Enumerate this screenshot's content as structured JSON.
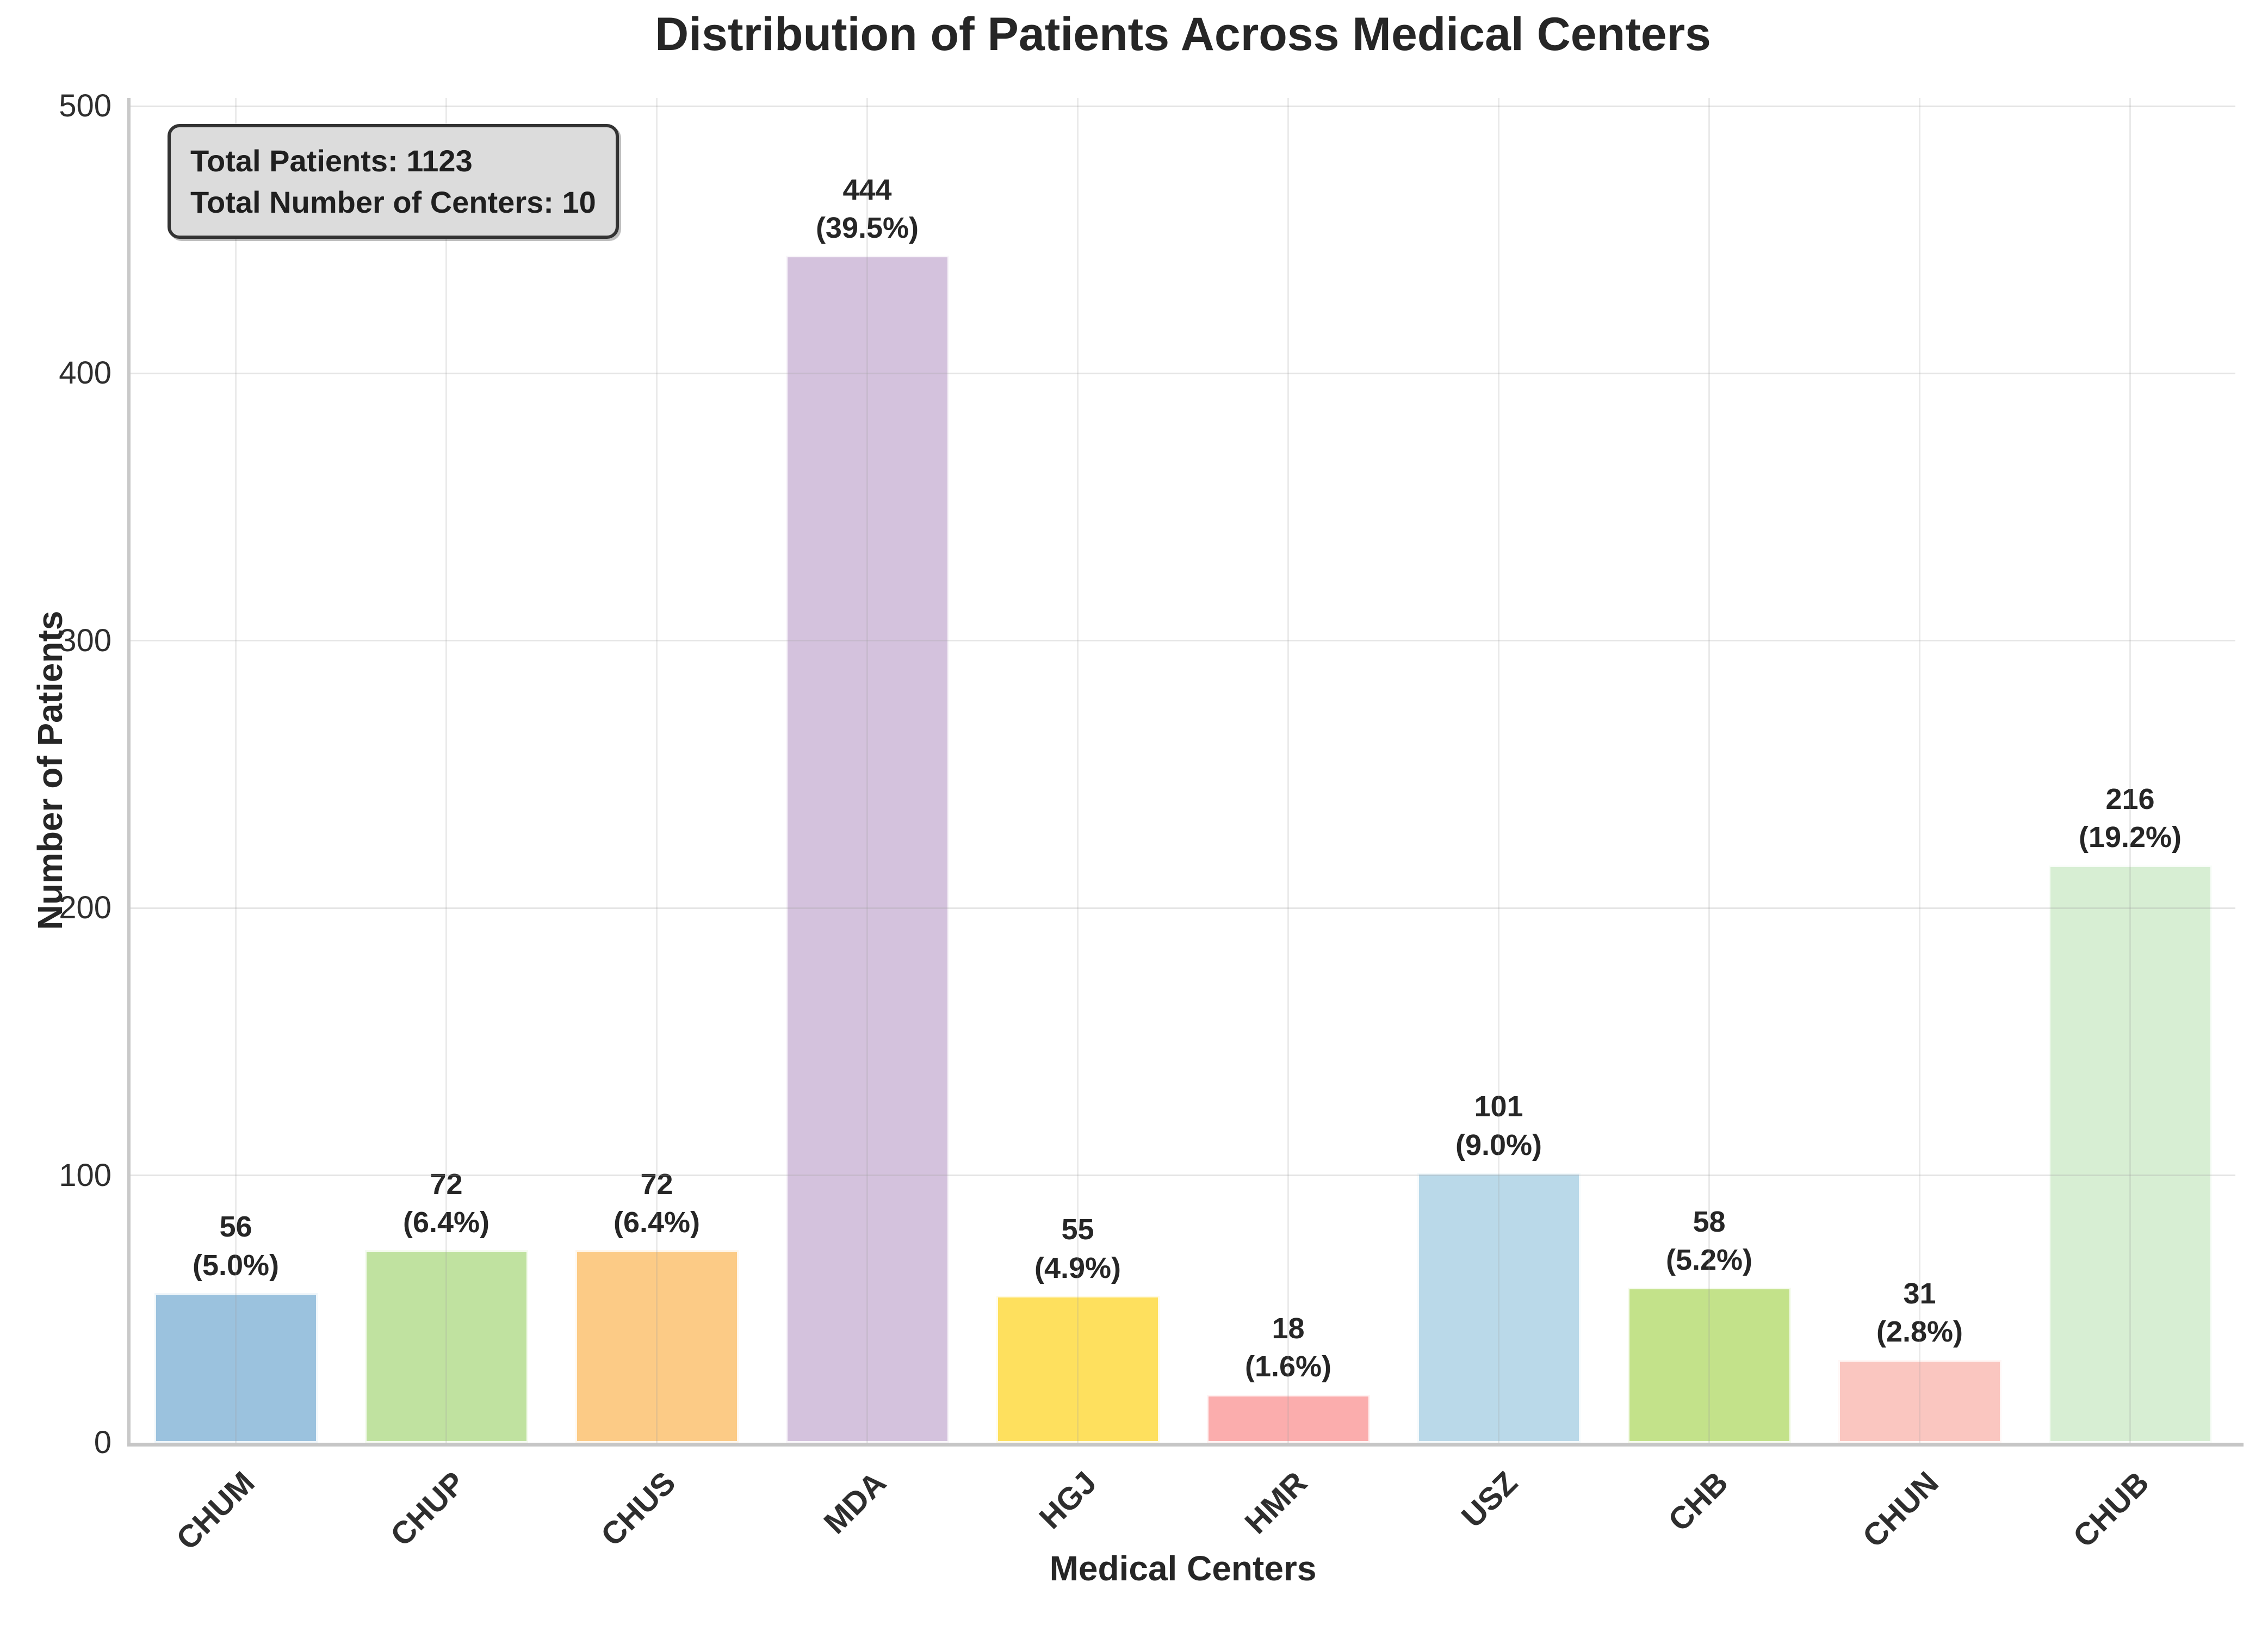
{
  "figure": {
    "info_box": {
      "line1": "Total Patients: 1123",
      "line2": "Total Number of Centers: 10"
    }
  },
  "chart_data": {
    "type": "bar",
    "title": "Distribution of Patients Across Medical Centers",
    "xlabel": "Medical Centers",
    "ylabel": "Number of Patients",
    "categories": [
      "CHUM",
      "CHUP",
      "CHUS",
      "MDA",
      "HGJ",
      "HMR",
      "USZ",
      "CHB",
      "CHUN",
      "CHUB"
    ],
    "values": [
      56,
      72,
      72,
      444,
      55,
      18,
      101,
      58,
      31,
      216
    ],
    "percent_labels": [
      "5.0%",
      "6.4%",
      "6.4%",
      "39.5%",
      "4.9%",
      "1.6%",
      "9.0%",
      "5.2%",
      "2.8%",
      "19.2%"
    ],
    "bar_colors": [
      "#9bc2de",
      "#c0e2a0",
      "#fccb86",
      "#d4c2dd",
      "#fee05e",
      "#fbadad",
      "#bad9e9",
      "#c3e28a",
      "#fac6c0",
      "#d7eed3"
    ],
    "ylim": [
      0,
      500
    ],
    "yticks": [
      0,
      100,
      200,
      300,
      400,
      500
    ],
    "grid": true,
    "legend_position": "none",
    "annotations": [
      "Total Patients: 1123",
      "Total Number of Centers: 10"
    ],
    "total_patients": 1123,
    "total_centers": 10
  },
  "colors": {
    "text": "#262626",
    "grid": "#ececec",
    "spine": "#c6c6c6",
    "info_box_bg": "#dcdcdc",
    "info_box_border": "#333333"
  }
}
